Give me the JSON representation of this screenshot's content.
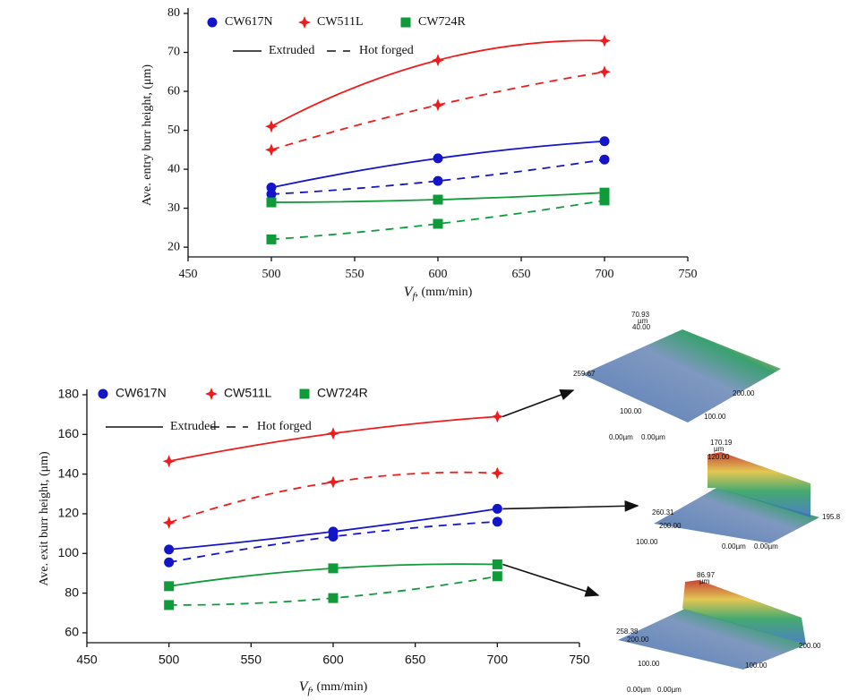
{
  "chart_data": [
    {
      "type": "line",
      "y_label": "Ave. entry burr height, (μm)",
      "x_label_symbol": "V",
      "x_label_subscript": "f",
      "x_label_unit": ", (mm/min)",
      "x": [
        500,
        600,
        700
      ],
      "xlim": [
        450,
        750
      ],
      "xticks": [
        450,
        500,
        550,
        600,
        650,
        700,
        750
      ],
      "ylim": [
        17.5,
        80
      ],
      "yticks": [
        20,
        30,
        40,
        50,
        60,
        70,
        80
      ],
      "line_legend": [
        "Extruded",
        "Hot forged"
      ],
      "series": [
        {
          "name": "CW617N",
          "color": "#1414c8",
          "marker": "circle",
          "dash": "solid",
          "values": [
            35.3,
            42.8,
            47.2
          ]
        },
        {
          "name": "CW617N",
          "color": "#1414c8",
          "marker": "circle",
          "dash": "dashed",
          "values": [
            33.6,
            37.0,
            42.5
          ]
        },
        {
          "name": "CW511L",
          "color": "#ee1c1c",
          "marker": "star",
          "dash": "solid",
          "values": [
            51,
            68,
            73
          ]
        },
        {
          "name": "CW511L",
          "color": "#ee1c1c",
          "marker": "star",
          "dash": "dashed",
          "values": [
            45,
            56.5,
            65
          ]
        },
        {
          "name": "CW724R",
          "color": "#0f9b3a",
          "marker": "square",
          "dash": "solid",
          "values": [
            31.5,
            32.2,
            34
          ]
        },
        {
          "name": "CW724R",
          "color": "#0f9b3a",
          "marker": "square",
          "dash": "dashed",
          "values": [
            22,
            26,
            32
          ]
        }
      ]
    },
    {
      "type": "line",
      "y_label": "Ave. exit burr height, (μm)",
      "x_label_symbol": "V",
      "x_label_subscript": "f",
      "x_label_unit": ", (mm/min)",
      "x": [
        500,
        600,
        700
      ],
      "xlim": [
        450,
        750
      ],
      "xticks": [
        450,
        500,
        550,
        600,
        650,
        700,
        750
      ],
      "ylim": [
        55,
        180
      ],
      "yticks": [
        60,
        80,
        100,
        120,
        140,
        160,
        180
      ],
      "line_legend": [
        "Extruded",
        "Hot forged"
      ],
      "series": [
        {
          "name": "CW617N",
          "color": "#1414c8",
          "marker": "circle",
          "dash": "solid",
          "values": [
            102,
            111,
            122.5
          ]
        },
        {
          "name": "CW617N",
          "color": "#1414c8",
          "marker": "circle",
          "dash": "dashed",
          "values": [
            95.5,
            108.5,
            116
          ]
        },
        {
          "name": "CW511L",
          "color": "#ee1c1c",
          "marker": "star",
          "dash": "solid",
          "values": [
            146.5,
            160.5,
            169
          ]
        },
        {
          "name": "CW511L",
          "color": "#ee1c1c",
          "marker": "star",
          "dash": "dashed",
          "values": [
            115.5,
            136,
            140.5
          ]
        },
        {
          "name": "CW724R",
          "color": "#0f9b3a",
          "marker": "square",
          "dash": "solid",
          "values": [
            83.5,
            92.5,
            94.5
          ]
        },
        {
          "name": "CW724R",
          "color": "#0f9b3a",
          "marker": "square",
          "dash": "dashed",
          "values": [
            74,
            77.5,
            88.5
          ]
        }
      ]
    }
  ],
  "insets": [
    {
      "labels": [
        "70.93",
        "µm",
        "40.00",
        "259.67",
        "200.00",
        "100.00",
        "100.00",
        "0.00µm",
        "0.00µm"
      ]
    },
    {
      "labels": [
        "170.19",
        "µm",
        "120.00",
        "260.31",
        "200.00",
        "195.8",
        "100.00",
        "0.00µm",
        "0.00µm"
      ]
    },
    {
      "labels": [
        "86.97",
        "µm",
        "258.38",
        "200.00",
        "100.00",
        "200.00",
        "100.00",
        "0.00µm",
        "0.00µm"
      ]
    }
  ]
}
